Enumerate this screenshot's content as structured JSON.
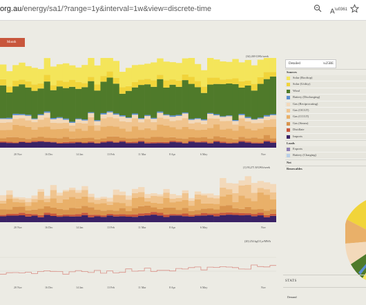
{
  "browser": {
    "url_domain": "org.au",
    "url_path": "/energy/sa1/?range=1y&interval=1w&view=discrete-time",
    "icons": [
      "zoom-icon",
      "read-aloud-icon",
      "favorite-star-icon"
    ]
  },
  "toolbar": {
    "month_label": "Month"
  },
  "charts": {
    "energy_label": "(34) 269 GWh/week",
    "price_label": "(1) 93,271 $/GWh/week",
    "emissions_label": "(20) 254 kgCO₂e/MWh"
  },
  "x_ticks": [
    "20 Nov",
    "16 Dec",
    "14 Jan",
    "13 Feb",
    "11 Mar",
    "8 Apr",
    "6 May",
    "Nov"
  ],
  "panel": {
    "view_select": "Detailed",
    "legend_groups": [
      {
        "title": "Sources",
        "items": [
          {
            "label": "Solar (Rooftop)",
            "color": "#f4e55a"
          },
          {
            "label": "Solar (Utility)",
            "color": "#f1d43a"
          },
          {
            "label": "Wind",
            "color": "#4f7a2a"
          },
          {
            "label": "Battery (Discharging)",
            "color": "#5a8ed1"
          },
          {
            "label": "Gas (Reciprocating)",
            "color": "#f3d9ba"
          },
          {
            "label": "Gas (OCGT)",
            "color": "#f0c48e"
          },
          {
            "label": "Gas (CCGT)",
            "color": "#e9b069"
          },
          {
            "label": "Gas (Steam)",
            "color": "#d9944d"
          },
          {
            "label": "Distillate",
            "color": "#c8563c"
          },
          {
            "label": "Imports",
            "color": "#3a2266"
          }
        ]
      },
      {
        "title": "Loads",
        "items": [
          {
            "label": "Exports",
            "color": "#8e7db3"
          },
          {
            "label": "Battery (Charging)",
            "color": "#b8cfe8"
          }
        ]
      }
    ],
    "net_label": "Net",
    "renewables_label": "Renewables",
    "stats_title": "STATS",
    "demand_label": "Demand"
  }
}
